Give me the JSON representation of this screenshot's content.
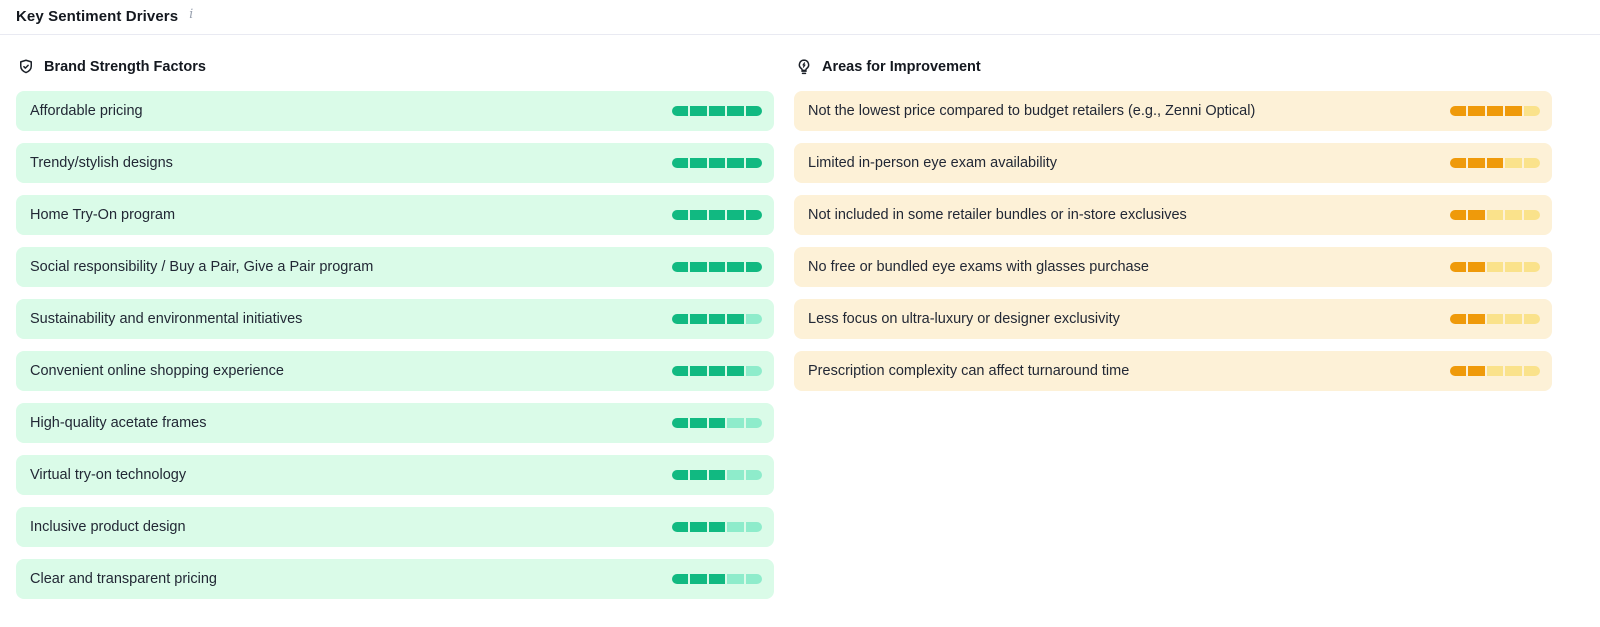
{
  "header": {
    "title": "Key Sentiment Drivers",
    "info_icon_glyph": "i"
  },
  "colors": {
    "positive_bg": "#dafbe8",
    "positive_fill": "#11b981",
    "positive_empty": "#8eeccb",
    "negative_bg": "#fdf1d7",
    "negative_fill": "#ef9a0a",
    "negative_empty": "#fae28b"
  },
  "columns": [
    {
      "id": "brand-strength-factors",
      "icon": "shield-check-icon",
      "title": "Brand Strength Factors",
      "items": [
        {
          "label": "Affordable pricing",
          "score": 5,
          "max": 5
        },
        {
          "label": "Trendy/stylish designs",
          "score": 5,
          "max": 5
        },
        {
          "label": "Home Try-On program",
          "score": 5,
          "max": 5
        },
        {
          "label": "Social responsibility / Buy a Pair, Give a Pair program",
          "score": 5,
          "max": 5
        },
        {
          "label": "Sustainability and environmental initiatives",
          "score": 4,
          "max": 5
        },
        {
          "label": "Convenient online shopping experience",
          "score": 4,
          "max": 5
        },
        {
          "label": "High-quality acetate frames",
          "score": 3,
          "max": 5
        },
        {
          "label": "Virtual try-on technology",
          "score": 3,
          "max": 5
        },
        {
          "label": "Inclusive product design",
          "score": 3,
          "max": 5
        },
        {
          "label": "Clear and transparent pricing",
          "score": 3,
          "max": 5
        }
      ]
    },
    {
      "id": "areas-for-improvement",
      "icon": "lightbulb-bolt-icon",
      "title": "Areas for Improvement",
      "items": [
        {
          "label": "Not the lowest price compared to budget retailers (e.g., Zenni Optical)",
          "score": 4,
          "max": 5
        },
        {
          "label": "Limited in-person eye exam availability",
          "score": 3,
          "max": 5
        },
        {
          "label": "Not included in some retailer bundles or in-store exclusives",
          "score": 2,
          "max": 5
        },
        {
          "label": "No free or bundled eye exams with glasses purchase",
          "score": 2,
          "max": 5
        },
        {
          "label": "Less focus on ultra-luxury or designer exclusivity",
          "score": 2,
          "max": 5
        },
        {
          "label": "Prescription complexity can affect turnaround time",
          "score": 2,
          "max": 5
        }
      ]
    }
  ]
}
